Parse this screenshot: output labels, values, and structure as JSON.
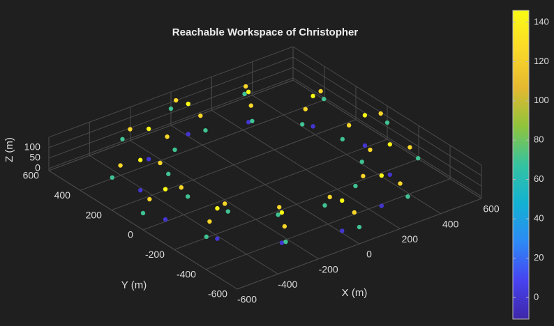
{
  "chart_data": {
    "type": "scatter3d",
    "title": "Reachable Workspace of Christopher",
    "xlabel": "X (m)",
    "ylabel": "Y (m)",
    "zlabel": "Z (m)",
    "x": [
      490,
      424,
      245,
      0,
      -245,
      -424,
      -490,
      -424,
      -245,
      0,
      245,
      424,
      600,
      520,
      300,
      0,
      -300,
      -520,
      -600,
      -520,
      -300,
      0,
      300,
      520,
      380,
      329,
      190,
      0,
      -190,
      -329,
      -380,
      -329,
      -190,
      0,
      190,
      329,
      490,
      424,
      245,
      0,
      -245,
      -424,
      -490,
      -424,
      -245,
      0,
      245,
      424,
      568,
      492,
      284,
      0,
      -284,
      -492,
      -568,
      -492,
      -284,
      0,
      284,
      492,
      412,
      357,
      206,
      0,
      -206,
      -357,
      -412,
      -357,
      -206,
      0,
      206,
      357
    ],
    "y": [
      0,
      245,
      424,
      490,
      424,
      245,
      0,
      -245,
      -424,
      -490,
      -424,
      -245,
      0,
      300,
      520,
      600,
      520,
      300,
      0,
      -300,
      -520,
      -600,
      -520,
      -300,
      0,
      190,
      329,
      380,
      329,
      190,
      0,
      -190,
      -329,
      -380,
      -329,
      -190,
      0,
      245,
      424,
      490,
      424,
      245,
      0,
      -245,
      -424,
      -490,
      -424,
      -245,
      0,
      284,
      492,
      568,
      492,
      284,
      0,
      -284,
      -492,
      -568,
      -492,
      -284,
      0,
      206,
      357,
      412,
      357,
      206,
      0,
      -206,
      -357,
      -412,
      -357,
      -206
    ],
    "z": [
      145,
      145,
      145,
      145,
      145,
      145,
      145,
      145,
      145,
      145,
      145,
      145,
      70,
      70,
      70,
      70,
      70,
      70,
      70,
      70,
      70,
      70,
      70,
      70,
      70,
      70,
      70,
      70,
      70,
      70,
      70,
      70,
      70,
      70,
      70,
      70,
      0,
      0,
      0,
      0,
      0,
      0,
      0,
      0,
      0,
      0,
      0,
      0,
      125,
      125,
      125,
      125,
      125,
      125,
      125,
      125,
      125,
      125,
      125,
      125,
      125,
      125,
      125,
      125,
      125,
      125,
      125,
      125,
      125,
      125,
      125,
      125
    ],
    "xlim": [
      -600,
      600
    ],
    "ylim": [
      -600,
      600
    ],
    "zlim": [
      -10,
      150
    ],
    "xticks": [
      -600,
      -400,
      -200,
      0,
      200,
      400,
      600
    ],
    "yticks": [
      -600,
      -400,
      -200,
      0,
      200,
      400,
      600
    ],
    "zticks": [
      0,
      50,
      100
    ],
    "grid": true,
    "colormap": [
      "#3e26a8",
      "#4743f0",
      "#2d8af5",
      "#12b1d3",
      "#35c3a0",
      "#8fc43c",
      "#e5b830",
      "#fbd929",
      "#f9fb15"
    ],
    "clim": [
      -11,
      146
    ],
    "colorbar_ticks": [
      0,
      20,
      40,
      60,
      80,
      100,
      120,
      140
    ]
  }
}
